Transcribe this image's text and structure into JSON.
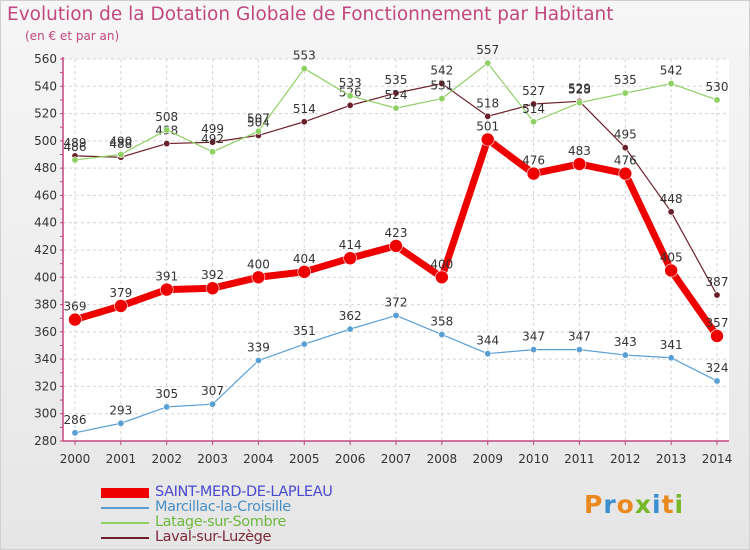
{
  "title": "Evolution de la Dotation Globale de Fonctionnement par Habitant",
  "subtitle": "(en € et par an)",
  "logo": {
    "letters": [
      "P",
      "r",
      "o",
      "x",
      "i",
      "t",
      "i"
    ],
    "colors": [
      "#e9891f",
      "#3a8fd0",
      "#e9891f",
      "#77b82a",
      "#3a8fd0",
      "#e9891f",
      "#77b82a"
    ]
  },
  "chart_data": {
    "type": "line",
    "title": "Evolution de la Dotation Globale de Fonctionnement par Habitant",
    "subtitle": "(en € et par an)",
    "x": [
      "2000",
      "2001",
      "2002",
      "2003",
      "2004",
      "2005",
      "2006",
      "2007",
      "2008",
      "2009",
      "2010",
      "2011",
      "2012",
      "2013",
      "2014"
    ],
    "yticks": [
      280,
      300,
      320,
      340,
      360,
      380,
      400,
      420,
      440,
      460,
      480,
      500,
      520,
      540,
      560
    ],
    "ylim": [
      280,
      560
    ],
    "grid": true,
    "legend_position": "bottom-left",
    "series": [
      {
        "name": "Laval-sur-Luzège",
        "color": "#6b1f2a",
        "values": [
          489,
          488,
          498,
          499,
          504,
          514,
          526,
          535,
          542,
          518,
          527,
          529,
          495,
          448,
          387
        ]
      },
      {
        "name": "Latage-sur-Sombre",
        "color": "#8fd065",
        "values": [
          486,
          490,
          508,
          492,
          507,
          553,
          533,
          524,
          531,
          557,
          514,
          528,
          535,
          542,
          530
        ]
      },
      {
        "name": "Marcillac-la-Croisille",
        "color": "#5a9fd4",
        "values": [
          286,
          293,
          305,
          307,
          339,
          351,
          362,
          372,
          358,
          344,
          347,
          347,
          343,
          341,
          324
        ]
      },
      {
        "name": "SAINT-MERD-DE-LAPLEAU",
        "color": "#ee0000",
        "values": [
          369,
          379,
          391,
          392,
          400,
          404,
          414,
          423,
          400,
          501,
          476,
          483,
          476,
          405,
          357
        ]
      }
    ]
  }
}
